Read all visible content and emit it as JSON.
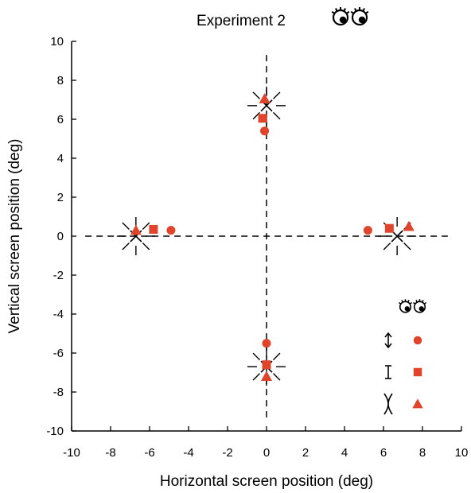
{
  "chart_data": {
    "type": "scatter",
    "title": "Experiment 2",
    "xlabel": "Horizontal screen position (deg)",
    "ylabel": "Vertical screen position (deg)",
    "xlim": [
      -10,
      10
    ],
    "ylim": [
      -10,
      10
    ],
    "xticks": [
      "-10",
      "-8",
      "-6",
      "-4",
      "-2",
      "0",
      "2",
      "4",
      "6",
      "8",
      "10"
    ],
    "yticks": [
      "-10",
      "-8",
      "-6",
      "-4",
      "-2",
      "0",
      "2",
      "4",
      "6",
      "8",
      "10"
    ],
    "grid": false,
    "marker_color": "#e0442a",
    "targets": [
      {
        "x": -6.7,
        "y": 0
      },
      {
        "x": 6.7,
        "y": 0
      },
      {
        "x": 0,
        "y": 6.7
      },
      {
        "x": 0,
        "y": -6.7
      }
    ],
    "series": [
      {
        "marker": "circle",
        "legend_symbol": "vergence-arrow-icon",
        "points": [
          [
            -4.9,
            0.3
          ],
          [
            5.2,
            0.3
          ],
          [
            -0.1,
            5.4
          ],
          [
            0,
            -5.5
          ]
        ]
      },
      {
        "marker": "square",
        "legend_symbol": "i-beam-icon",
        "points": [
          [
            -5.8,
            0.35
          ],
          [
            6.3,
            0.4
          ],
          [
            -0.2,
            6.05
          ],
          [
            0,
            -6.6
          ]
        ]
      },
      {
        "marker": "triangle",
        "legend_symbol": "inward-bracket-icon",
        "points": [
          [
            -6.7,
            0.3
          ],
          [
            7.3,
            0.5
          ],
          [
            -0.1,
            7.05
          ],
          [
            0,
            -7.2
          ]
        ]
      }
    ]
  },
  "icons": {
    "title_icon": "eyes-icon",
    "legend_header_icon": "eyes-icon"
  }
}
